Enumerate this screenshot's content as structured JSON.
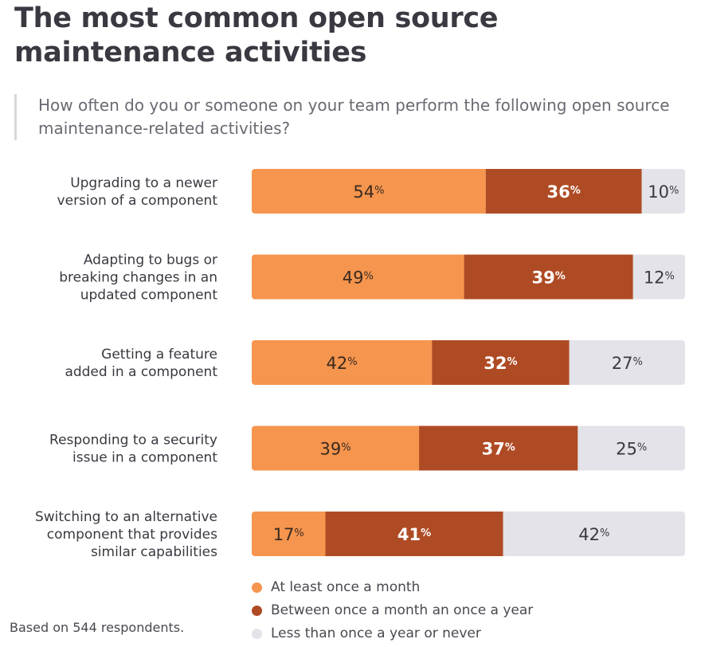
{
  "title": "The most common open source maintenance activities",
  "subtitle": "How often do you or someone on your team perform the following open source maintenance-related activities?",
  "footnote": "Based on 544 respondents.",
  "colors": {
    "month": "#f5954e",
    "year": "#af4b24",
    "never": "#e3e3e9",
    "month_text": "#3a2a20",
    "year_text": "#ffffff",
    "never_text": "#3a3840",
    "label_text": "#3a3840"
  },
  "chart_data": {
    "type": "bar",
    "orientation": "horizontal",
    "stacked": true,
    "percent_scale": true,
    "xlim": [
      0,
      100
    ],
    "value_suffix": "%",
    "legend_position": "bottom",
    "grid": false,
    "categories": [
      [
        "Upgrading to a newer",
        "version of a component"
      ],
      [
        "Adapting to bugs or",
        "breaking changes in an",
        "updated component"
      ],
      [
        "Getting a feature",
        "added in a component"
      ],
      [
        "Responding to a security",
        "issue in a component"
      ],
      [
        "Switching to an alternative",
        "component that provides",
        "similar capabilities"
      ]
    ],
    "series": [
      {
        "name": "At least once a month",
        "key": "month",
        "values": [
          54,
          49,
          42,
          39,
          17
        ]
      },
      {
        "name": "Between once a month an once a year",
        "key": "year",
        "values": [
          36,
          39,
          32,
          37,
          41
        ]
      },
      {
        "name": "Less than once a year or never",
        "key": "never",
        "values": [
          10,
          12,
          27,
          25,
          42
        ]
      }
    ]
  }
}
